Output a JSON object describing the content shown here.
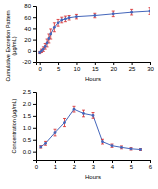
{
  "chart_data": [
    {
      "type": "line",
      "xlabel": "Hours",
      "ylabel": "Cumulative Excretion Pattern\n(µg/mL)",
      "x": [
        0,
        0.5,
        1,
        1.5,
        2,
        2.5,
        3,
        4,
        5,
        6,
        7,
        8,
        10,
        15,
        20,
        25,
        30
      ],
      "series": [
        {
          "color": "#4466bb",
          "marker": "circle",
          "values": [
            -3,
            0,
            3,
            8,
            14,
            22,
            30,
            42,
            50,
            55,
            57,
            59,
            61,
            63,
            66,
            69,
            71
          ],
          "errors": [
            2,
            3,
            4,
            5,
            7,
            8,
            9,
            8,
            6,
            5,
            5,
            4,
            4,
            4,
            5,
            5,
            6
          ]
        }
      ],
      "xlim": [
        -1,
        30
      ],
      "xticks": [
        0,
        5,
        10,
        15,
        20,
        25,
        30
      ],
      "ylim": [
        -20,
        80
      ],
      "yticks": [
        -20,
        0,
        20,
        40,
        60,
        80
      ]
    },
    {
      "type": "line",
      "xlabel": "Hours",
      "ylabel": "Concentration (µg/mL)",
      "x": [
        0.25,
        0.5,
        1.0,
        1.5,
        2.0,
        2.5,
        3.0,
        3.5,
        4.0,
        4.5,
        5.0,
        5.5
      ],
      "series": [
        {
          "color": "#4466bb",
          "marker": "circle",
          "values": [
            0.2,
            0.35,
            0.8,
            1.22,
            1.78,
            1.6,
            1.52,
            0.42,
            0.25,
            0.18,
            0.12,
            0.09
          ],
          "errors": [
            0.05,
            0.08,
            0.14,
            0.17,
            0.12,
            0.14,
            0.12,
            0.1,
            0.07,
            0.06,
            0.05,
            0.04
          ]
        }
      ],
      "xlim": [
        0,
        6
      ],
      "xticks": [
        0,
        1,
        2,
        3,
        4,
        5,
        6
      ],
      "ylim": [
        -0.35,
        2.5
      ],
      "yticks": [
        {
          "value": 0,
          "label": "0.0"
        },
        0.5,
        {
          "value": 1,
          "label": "1.0"
        },
        1.5,
        {
          "value": 2,
          "label": "2.0"
        },
        2.5
      ]
    }
  ]
}
